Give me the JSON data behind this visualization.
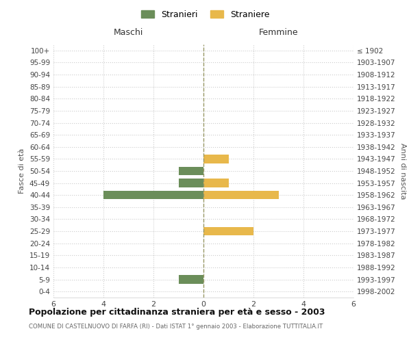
{
  "age_groups": [
    "100+",
    "95-99",
    "90-94",
    "85-89",
    "80-84",
    "75-79",
    "70-74",
    "65-69",
    "60-64",
    "55-59",
    "50-54",
    "45-49",
    "40-44",
    "35-39",
    "30-34",
    "25-29",
    "20-24",
    "15-19",
    "10-14",
    "5-9",
    "0-4"
  ],
  "birth_years": [
    "≤ 1902",
    "1903-1907",
    "1908-1912",
    "1913-1917",
    "1918-1922",
    "1923-1927",
    "1928-1932",
    "1933-1937",
    "1938-1942",
    "1943-1947",
    "1948-1952",
    "1953-1957",
    "1958-1962",
    "1963-1967",
    "1968-1972",
    "1973-1977",
    "1978-1982",
    "1983-1987",
    "1988-1992",
    "1993-1997",
    "1998-2002"
  ],
  "maschi": [
    0,
    0,
    0,
    0,
    0,
    0,
    0,
    0,
    0,
    0,
    1,
    1,
    4,
    0,
    0,
    0,
    0,
    0,
    0,
    1,
    0
  ],
  "femmine": [
    0,
    0,
    0,
    0,
    0,
    0,
    0,
    0,
    0,
    1,
    0,
    1,
    3,
    0,
    0,
    2,
    0,
    0,
    0,
    0,
    0
  ],
  "male_color": "#6B8E5A",
  "female_color": "#E8B84B",
  "title": "Popolazione per cittadinanza straniera per età e sesso - 2003",
  "subtitle": "COMUNE DI CASTELNUOVO DI FARFA (RI) - Dati ISTAT 1° gennaio 2003 - Elaborazione TUTTITALIA.IT",
  "legend_male": "Stranieri",
  "legend_female": "Straniere",
  "xlabel_left": "Maschi",
  "xlabel_right": "Femmine",
  "ylabel_left": "Fasce di età",
  "ylabel_right": "Anni di nascita",
  "xlim": 6,
  "bg_color": "#ffffff",
  "grid_color": "#cccccc",
  "bar_height": 0.7
}
